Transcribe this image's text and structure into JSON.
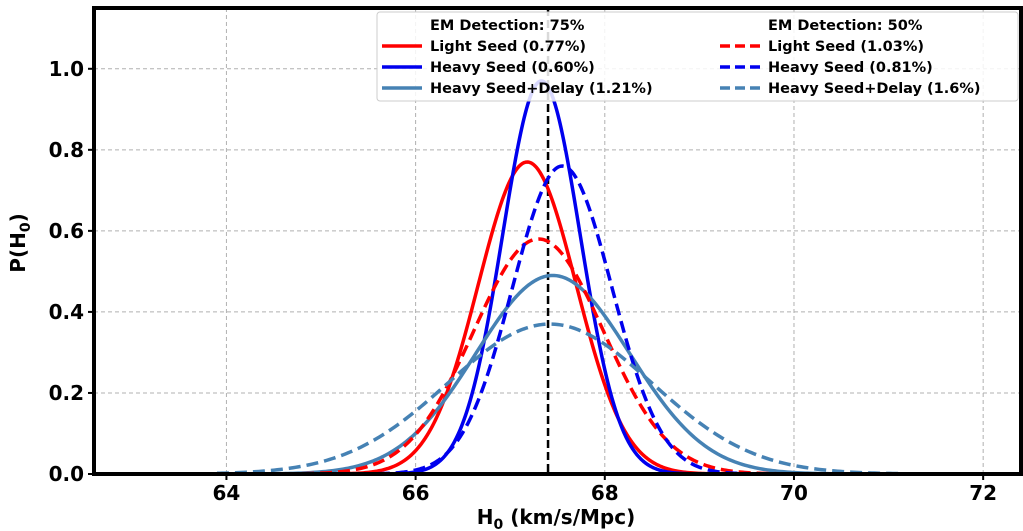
{
  "chart_data": {
    "type": "line",
    "xlabel_main": "H",
    "xlabel_sub": "0",
    "xlabel_rest": " (km/s/Mpc)",
    "ylabel_main": "P(H",
    "ylabel_sub": "0",
    "ylabel_rest": ")",
    "xlim": [
      62.6,
      72.4
    ],
    "ylim": [
      0,
      1.15
    ],
    "xticks": [
      64,
      66,
      68,
      70,
      72
    ],
    "yticks": [
      0.0,
      0.2,
      0.4,
      0.6,
      0.8,
      1.0
    ],
    "xtick_labels": [
      "64",
      "66",
      "68",
      "70",
      "72"
    ],
    "ytick_labels": [
      "0.0",
      "0.2",
      "0.4",
      "0.6",
      "0.8",
      "1.0"
    ],
    "grid": true,
    "legend_placement": "top-right",
    "reference_line": {
      "x": 67.4,
      "color": "#000000",
      "style": "dashed"
    },
    "legend_columns": [
      {
        "title": "EM Detection: 75%"
      },
      {
        "title": "EM Detection: 50%"
      }
    ],
    "series": [
      {
        "name": "Light Seed (0.77%)",
        "column": 0,
        "color": "#ff0000",
        "dash": "solid",
        "mu": 67.18,
        "peak": 0.77,
        "xmin": 64.8,
        "xmax": 69.5
      },
      {
        "name": "Heavy Seed (0.60%)",
        "column": 0,
        "color": "#0000ee",
        "dash": "solid",
        "mu": 67.33,
        "peak": 0.97,
        "xmin": 65.7,
        "xmax": 69.0
      },
      {
        "name": "Heavy Seed+Delay (1.21%)",
        "column": 0,
        "color": "#4682b4",
        "dash": "solid",
        "mu": 67.45,
        "peak": 0.49,
        "xmin": 64.2,
        "xmax": 71.1
      },
      {
        "name": "Light Seed (1.03%)",
        "column": 1,
        "color": "#ff0000",
        "dash": "dashed",
        "mu": 67.3,
        "peak": 0.58,
        "xmin": 64.8,
        "xmax": 70.0
      },
      {
        "name": "Heavy Seed (0.81%)",
        "column": 1,
        "color": "#0000ee",
        "dash": "dashed",
        "mu": 67.55,
        "peak": 0.76,
        "xmin": 65.6,
        "xmax": 69.6
      },
      {
        "name": "Heavy Seed+Delay (1.6%)",
        "column": 1,
        "color": "#4682b4",
        "dash": "dashed",
        "mu": 67.42,
        "peak": 0.37,
        "xmin": 63.9,
        "xmax": 71.1
      }
    ]
  }
}
